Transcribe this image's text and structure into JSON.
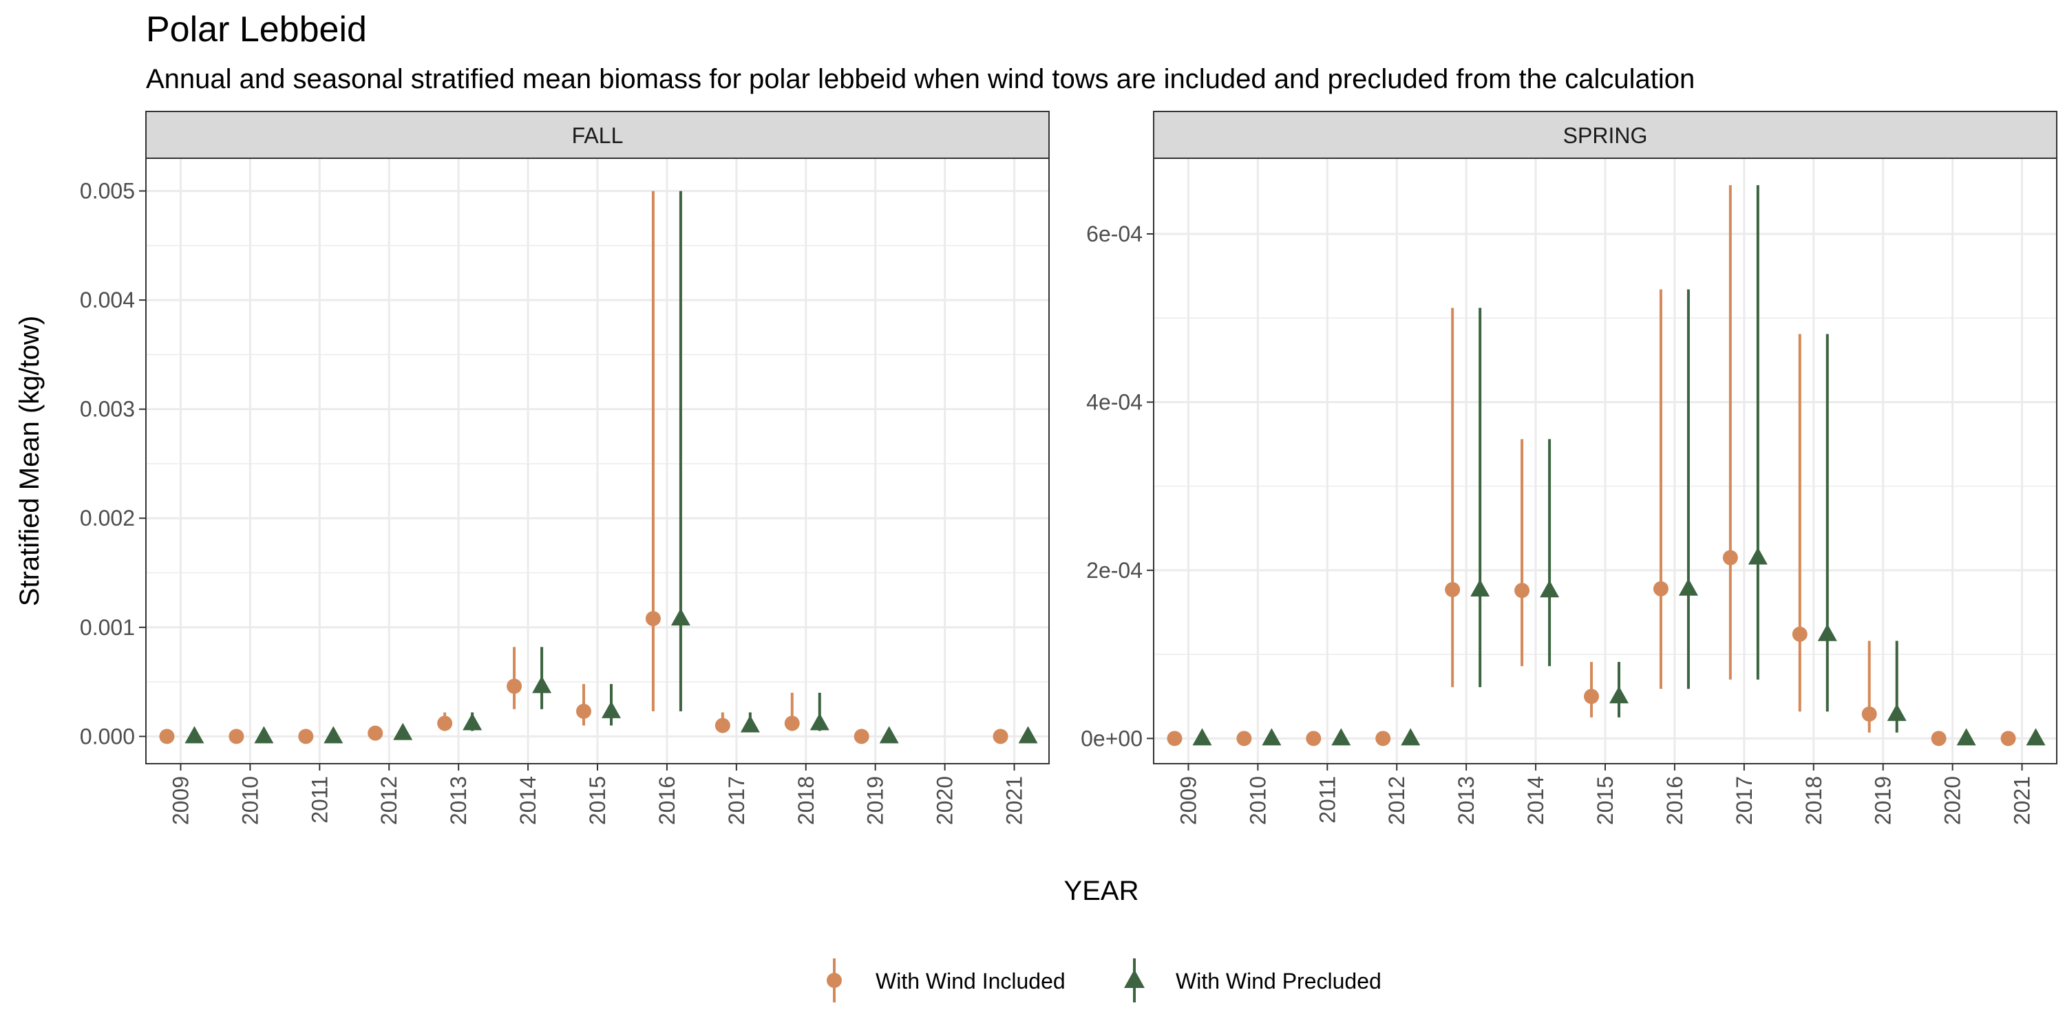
{
  "chart_data": {
    "type": "scatter",
    "title": "Polar Lebbeid",
    "subtitle": "Annual and seasonal stratified mean biomass for polar lebbeid when wind tows are included and precluded from the calculation",
    "xlabel": "YEAR",
    "ylabel": "Stratified Mean (kg/tow)",
    "grid": true,
    "legend_position": "bottom",
    "colors": {
      "included": "#D4895A",
      "precluded": "#3C6440",
      "strip_fill": "#D9D9D9",
      "grid": "#EBEBEB",
      "panel_border": "#333333"
    },
    "legend": [
      {
        "key": "included",
        "label": "With Wind Included",
        "shape": "circle"
      },
      {
        "key": "precluded",
        "label": "With Wind Precluded",
        "shape": "triangle"
      }
    ],
    "panels": [
      {
        "label": "FALL",
        "years": [
          "2009",
          "2010",
          "2011",
          "2012",
          "2013",
          "2014",
          "2015",
          "2016",
          "2017",
          "2018",
          "2019",
          "2020",
          "2021"
        ],
        "ylim": [
          -0.00025,
          0.0053
        ],
        "y_ticks": [
          0,
          0.001,
          0.002,
          0.003,
          0.004,
          0.005
        ],
        "y_tick_labels": [
          "0.000",
          "0.001",
          "0.002",
          "0.003",
          "0.004",
          "0.005"
        ],
        "series": [
          {
            "key": "included",
            "name": "With Wind Included",
            "points": [
              {
                "year": "2009",
                "value": 0,
                "lo": 0,
                "hi": 0
              },
              {
                "year": "2010",
                "value": 0,
                "lo": 0,
                "hi": 0
              },
              {
                "year": "2011",
                "value": 0,
                "lo": 0,
                "hi": 0
              },
              {
                "year": "2012",
                "value": 3e-05,
                "lo": 1e-05,
                "hi": 5e-05
              },
              {
                "year": "2013",
                "value": 0.00012,
                "lo": 5e-05,
                "hi": 0.00022
              },
              {
                "year": "2014",
                "value": 0.00046,
                "lo": 0.00025,
                "hi": 0.00082
              },
              {
                "year": "2015",
                "value": 0.00023,
                "lo": 0.0001,
                "hi": 0.00048
              },
              {
                "year": "2016",
                "value": 0.00108,
                "lo": 0.00023,
                "hi": 0.005
              },
              {
                "year": "2017",
                "value": 0.0001,
                "lo": 5e-05,
                "hi": 0.00022
              },
              {
                "year": "2018",
                "value": 0.00012,
                "lo": 5e-05,
                "hi": 0.0004
              },
              {
                "year": "2019",
                "value": 0,
                "lo": 0,
                "hi": 0
              },
              {
                "year": "2021",
                "value": 0,
                "lo": 0,
                "hi": 0
              }
            ]
          },
          {
            "key": "precluded",
            "name": "With Wind Precluded",
            "points": [
              {
                "year": "2009",
                "value": 0,
                "lo": 0,
                "hi": 0
              },
              {
                "year": "2010",
                "value": 0,
                "lo": 0,
                "hi": 0
              },
              {
                "year": "2011",
                "value": 0,
                "lo": 0,
                "hi": 0
              },
              {
                "year": "2012",
                "value": 3e-05,
                "lo": 1e-05,
                "hi": 5e-05
              },
              {
                "year": "2013",
                "value": 0.00012,
                "lo": 5e-05,
                "hi": 0.00022
              },
              {
                "year": "2014",
                "value": 0.00046,
                "lo": 0.00025,
                "hi": 0.00082
              },
              {
                "year": "2015",
                "value": 0.00023,
                "lo": 0.0001,
                "hi": 0.00048
              },
              {
                "year": "2016",
                "value": 0.00108,
                "lo": 0.00023,
                "hi": 0.005
              },
              {
                "year": "2017",
                "value": 0.0001,
                "lo": 5e-05,
                "hi": 0.00022
              },
              {
                "year": "2018",
                "value": 0.00012,
                "lo": 5e-05,
                "hi": 0.0004
              },
              {
                "year": "2019",
                "value": 0,
                "lo": 0,
                "hi": 0
              },
              {
                "year": "2021",
                "value": 0,
                "lo": 0,
                "hi": 0
              }
            ]
          }
        ]
      },
      {
        "label": "SPRING",
        "years": [
          "2009",
          "2010",
          "2011",
          "2012",
          "2013",
          "2014",
          "2015",
          "2016",
          "2017",
          "2018",
          "2019",
          "2020",
          "2021"
        ],
        "ylim": [
          -3e-05,
          0.00069
        ],
        "y_ticks": [
          0,
          0.0002,
          0.0004,
          0.0006
        ],
        "y_tick_labels": [
          "0e+00",
          "2e-04",
          "4e-04",
          "6e-04"
        ],
        "series": [
          {
            "key": "included",
            "name": "With Wind Included",
            "points": [
              {
                "year": "2009",
                "value": 0,
                "lo": 0,
                "hi": 0
              },
              {
                "year": "2010",
                "value": 0,
                "lo": 0,
                "hi": 0
              },
              {
                "year": "2011",
                "value": 0,
                "lo": 0,
                "hi": 0
              },
              {
                "year": "2012",
                "value": 0,
                "lo": 0,
                "hi": 0
              },
              {
                "year": "2013",
                "value": 0.000177,
                "lo": 6.1e-05,
                "hi": 0.000512
              },
              {
                "year": "2014",
                "value": 0.000176,
                "lo": 8.6e-05,
                "hi": 0.000356
              },
              {
                "year": "2015",
                "value": 5e-05,
                "lo": 2.5e-05,
                "hi": 9.1e-05
              },
              {
                "year": "2016",
                "value": 0.000178,
                "lo": 5.9e-05,
                "hi": 0.000534
              },
              {
                "year": "2017",
                "value": 0.000215,
                "lo": 7e-05,
                "hi": 0.000658
              },
              {
                "year": "2018",
                "value": 0.000124,
                "lo": 3.2e-05,
                "hi": 0.000481
              },
              {
                "year": "2019",
                "value": 2.9e-05,
                "lo": 7e-06,
                "hi": 0.000116
              },
              {
                "year": "2020",
                "value": 0,
                "lo": 0,
                "hi": 0
              },
              {
                "year": "2021",
                "value": 0,
                "lo": 0,
                "hi": 0
              }
            ]
          },
          {
            "key": "precluded",
            "name": "With Wind Precluded",
            "points": [
              {
                "year": "2009",
                "value": 0,
                "lo": 0,
                "hi": 0
              },
              {
                "year": "2010",
                "value": 0,
                "lo": 0,
                "hi": 0
              },
              {
                "year": "2011",
                "value": 0,
                "lo": 0,
                "hi": 0
              },
              {
                "year": "2012",
                "value": 0,
                "lo": 0,
                "hi": 0
              },
              {
                "year": "2013",
                "value": 0.000177,
                "lo": 6.1e-05,
                "hi": 0.000512
              },
              {
                "year": "2014",
                "value": 0.000176,
                "lo": 8.6e-05,
                "hi": 0.000356
              },
              {
                "year": "2015",
                "value": 5e-05,
                "lo": 2.5e-05,
                "hi": 9.1e-05
              },
              {
                "year": "2016",
                "value": 0.000178,
                "lo": 5.9e-05,
                "hi": 0.000534
              },
              {
                "year": "2017",
                "value": 0.000215,
                "lo": 7e-05,
                "hi": 0.000658
              },
              {
                "year": "2018",
                "value": 0.000124,
                "lo": 3.2e-05,
                "hi": 0.000481
              },
              {
                "year": "2019",
                "value": 2.9e-05,
                "lo": 7e-06,
                "hi": 0.000116
              },
              {
                "year": "2020",
                "value": 0,
                "lo": 0,
                "hi": 0
              },
              {
                "year": "2021",
                "value": 0,
                "lo": 0,
                "hi": 0
              }
            ]
          }
        ]
      }
    ]
  }
}
